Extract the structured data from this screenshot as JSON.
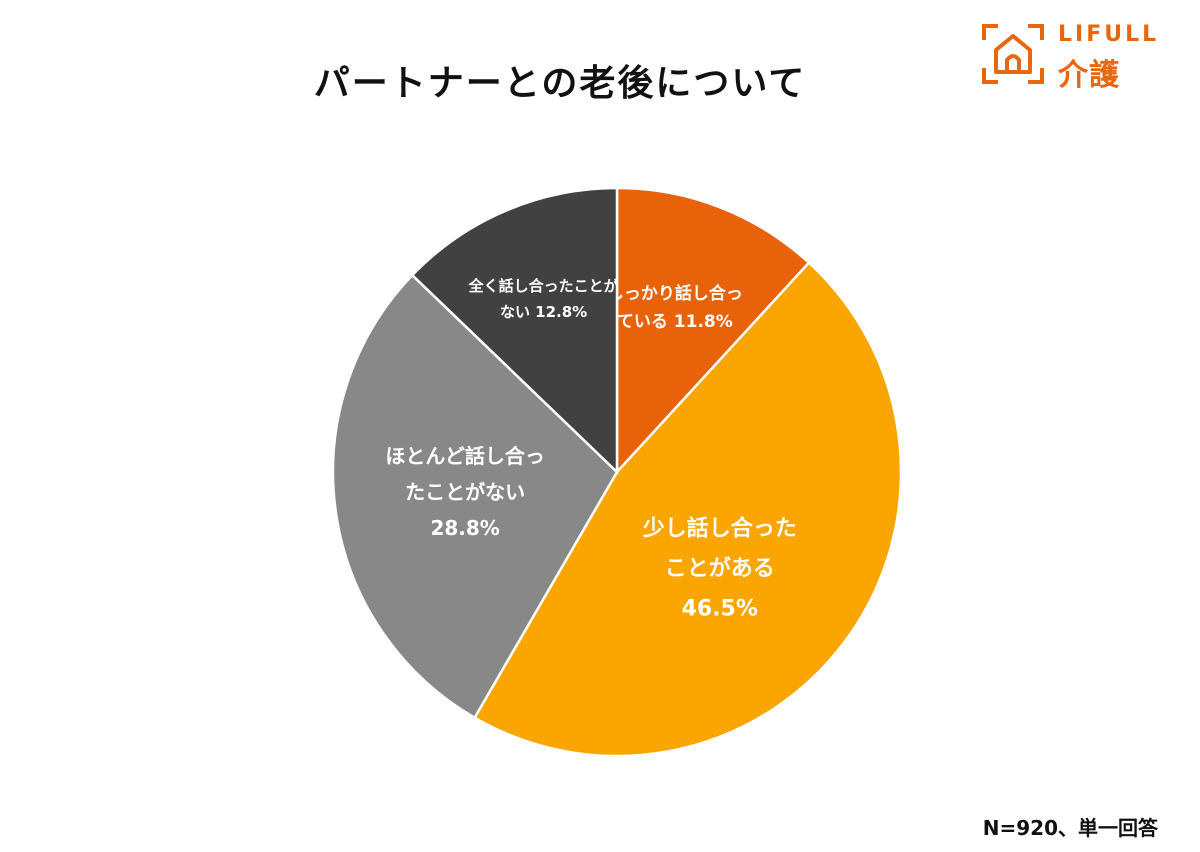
{
  "header": {
    "title": "パートナーとの老後について"
  },
  "logo": {
    "text_en": "LIFULL",
    "text_ja": "介護"
  },
  "footnote": "N=920、単一回答",
  "colors": {
    "brand": "#e8660c"
  },
  "chart_data": {
    "type": "pie",
    "title": "パートナーとの老後について",
    "start_angle_deg": 0,
    "direction": "clockwise",
    "slices": [
      {
        "label": "しっかり話し合っている",
        "value": 11.8,
        "value_label": "11.8%",
        "label_lines": [
          "しっかり話し合っ",
          "ている 11.8%"
        ],
        "color": "#e8620a"
      },
      {
        "label": "少し話し合ったことがある",
        "value": 46.5,
        "value_label": "46.5%",
        "label_lines": [
          "少し話し合った",
          "ことがある",
          "46.5%"
        ],
        "color": "#faa500"
      },
      {
        "label": "ほとんど話し合ったことがない",
        "value": 28.8,
        "value_label": "28.8%",
        "label_lines": [
          "ほとんど話し合っ",
          "たことがない",
          "28.8%"
        ],
        "color": "#888888"
      },
      {
        "label": "全く話し合ったことがない",
        "value": 12.8,
        "value_label": "12.8%",
        "label_lines": [
          "全く話し合ったことが",
          "ない 12.8%"
        ],
        "color": "#414141"
      }
    ]
  }
}
